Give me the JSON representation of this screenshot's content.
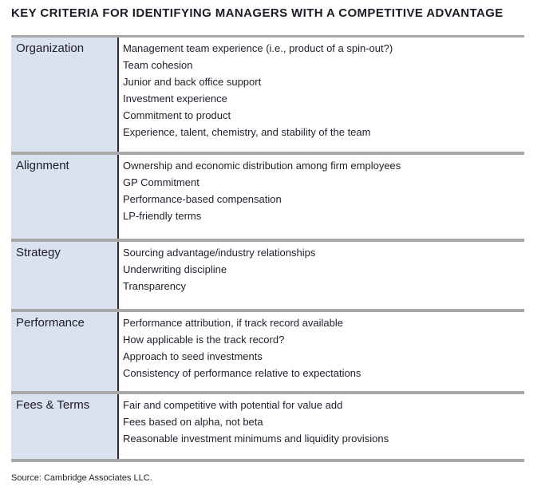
{
  "title": "KEY CRITERIA FOR IDENTIFYING MANAGERS WITH A COMPETITIVE ADVANTAGE",
  "source": "Source: Cambridge Associates LLC.",
  "colors": {
    "category_background": "#d9e2ee",
    "separator_gray": "#a8a8a8",
    "column_divider": "#2a2a33",
    "text": "#1f1f2b"
  },
  "table": {
    "rows": [
      {
        "category": "Organization",
        "items": [
          "Management team experience (i.e., product of a spin-out?)",
          "Team cohesion",
          "Junior and back office support",
          "Investment experience",
          "Commitment to product",
          "Experience, talent, chemistry, and stability of the team"
        ]
      },
      {
        "category": "Alignment",
        "items": [
          "Ownership and economic distribution among firm employees",
          "GP Commitment",
          "Performance-based compensation",
          "LP-friendly terms"
        ]
      },
      {
        "category": "Strategy",
        "items": [
          "Sourcing advantage/industry relationships",
          "Underwriting discipline",
          "Transparency"
        ]
      },
      {
        "category": "Performance",
        "items": [
          "Performance attribution, if track record available",
          "How applicable is the track record?",
          "Approach to seed investments",
          "Consistency of performance relative to expectations"
        ]
      },
      {
        "category": "Fees & Terms",
        "items": [
          "Fair and competitive with potential for value add",
          "Fees based on alpha, not beta",
          "Reasonable investment minimums and liquidity provisions"
        ]
      }
    ]
  }
}
